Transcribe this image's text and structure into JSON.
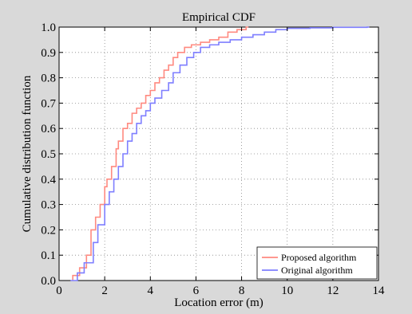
{
  "chart_data": {
    "type": "line",
    "step": true,
    "title": "Empirical CDF",
    "xlabel": "Location error (m)",
    "ylabel": "Cumulative distribution function",
    "xlim": [
      0,
      14
    ],
    "ylim": [
      0,
      1
    ],
    "xticks": [
      0,
      2,
      4,
      6,
      8,
      10,
      12,
      14
    ],
    "yticks": [
      0,
      0.1,
      0.2,
      0.3,
      0.4,
      0.5,
      0.6,
      0.7,
      0.8,
      0.9,
      1.0
    ],
    "xtick_labels": [
      "0",
      "2",
      "4",
      "6",
      "8",
      "10",
      "12",
      "14"
    ],
    "ytick_labels": [
      "0.0",
      "0.1",
      "0.2",
      "0.3",
      "0.4",
      "0.5",
      "0.6",
      "0.7",
      "0.8",
      "0.9",
      "1.0"
    ],
    "grid": true,
    "legend_position": "bottom-right",
    "series": [
      {
        "name": "Proposed algorithm",
        "color": "#ff8a80",
        "x": [
          0.6,
          0.9,
          1.2,
          1.4,
          1.6,
          1.8,
          2.0,
          2.1,
          2.3,
          2.5,
          2.6,
          2.8,
          3.0,
          3.2,
          3.4,
          3.6,
          3.8,
          4.0,
          4.2,
          4.4,
          4.6,
          4.8,
          5.0,
          5.2,
          5.5,
          5.8,
          6.2,
          6.6,
          7.0,
          7.4,
          7.8,
          8.2
        ],
        "y": [
          0.02,
          0.05,
          0.1,
          0.2,
          0.25,
          0.3,
          0.37,
          0.4,
          0.45,
          0.52,
          0.55,
          0.6,
          0.62,
          0.66,
          0.68,
          0.7,
          0.73,
          0.75,
          0.78,
          0.8,
          0.83,
          0.85,
          0.88,
          0.9,
          0.92,
          0.93,
          0.94,
          0.95,
          0.96,
          0.98,
          0.99,
          1.0
        ]
      },
      {
        "name": "Original algorithm",
        "color": "#7f7fff",
        "x": [
          0.5,
          0.8,
          1.1,
          1.5,
          1.7,
          2.0,
          2.2,
          2.4,
          2.6,
          2.8,
          3.0,
          3.2,
          3.4,
          3.6,
          3.8,
          4.0,
          4.2,
          4.5,
          4.8,
          5.0,
          5.3,
          5.6,
          5.9,
          6.2,
          6.6,
          7.0,
          7.5,
          8.0,
          8.5,
          9.0,
          9.5,
          10.0,
          11.0,
          12.0,
          13.5
        ],
        "y": [
          0.0,
          0.03,
          0.07,
          0.15,
          0.22,
          0.3,
          0.35,
          0.4,
          0.45,
          0.5,
          0.55,
          0.58,
          0.62,
          0.65,
          0.67,
          0.7,
          0.72,
          0.75,
          0.78,
          0.82,
          0.85,
          0.88,
          0.9,
          0.92,
          0.93,
          0.94,
          0.95,
          0.96,
          0.97,
          0.98,
          0.99,
          0.995,
          0.997,
          0.999,
          1.0
        ]
      }
    ]
  }
}
